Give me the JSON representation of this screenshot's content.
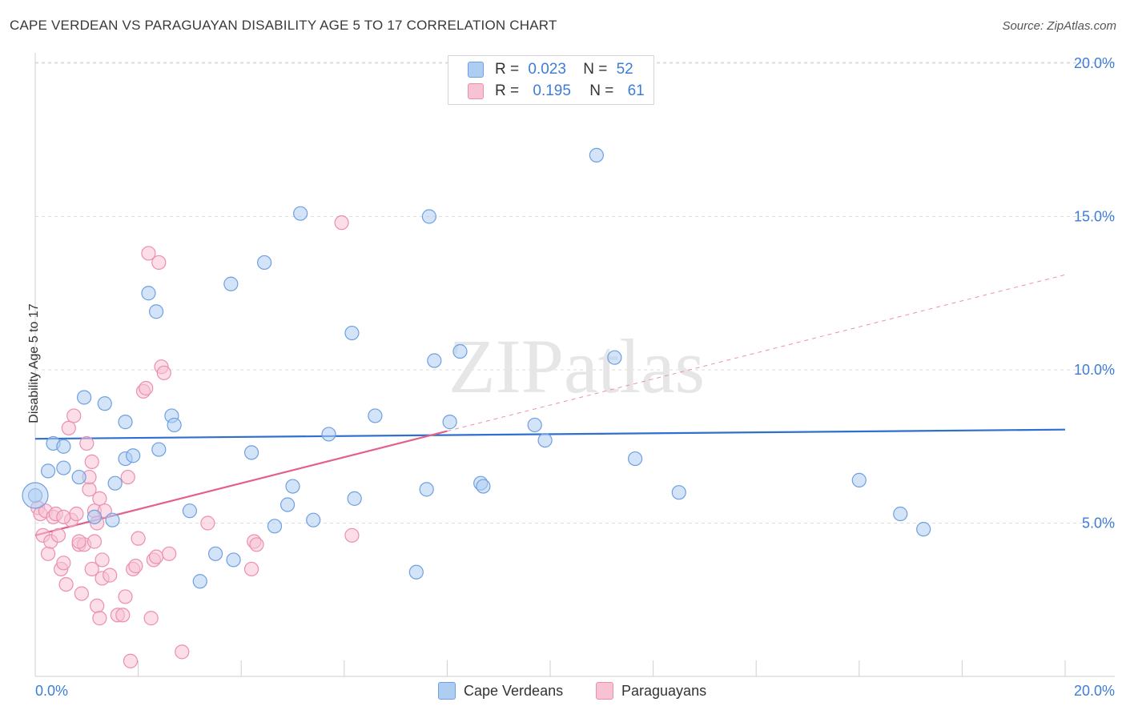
{
  "title": "CAPE VERDEAN VS PARAGUAYAN DISABILITY AGE 5 TO 17 CORRELATION CHART",
  "source": "Source: ZipAtlas.com",
  "watermark": "ZIPatlas",
  "legend_top": {
    "rows": [
      {
        "r_label": "R =",
        "r_value": "0.023",
        "n_label": "N =",
        "n_value": "52",
        "color": "#aecdf3",
        "stroke": "#6f9fe0"
      },
      {
        "r_label": "R =",
        "r_value": "0.195",
        "n_label": "N =",
        "n_value": "61",
        "color": "#f7c3d3",
        "stroke": "#ec8fae"
      }
    ]
  },
  "legend_bottom": [
    {
      "label": "Cape Verdeans",
      "color": "#aecdf3",
      "stroke": "#6f9fe0"
    },
    {
      "label": "Paraguayans",
      "color": "#f7c3d3",
      "stroke": "#ec8fae"
    }
  ],
  "chart_data": {
    "type": "scatter",
    "title": "CAPE VERDEAN VS PARAGUAYAN DISABILITY AGE 5 TO 17 CORRELATION CHART",
    "xlabel": "",
    "ylabel": "Disability Age 5 to 17",
    "xlim": [
      0,
      20
    ],
    "ylim": [
      0,
      20
    ],
    "x_tick_labels": [
      "0.0%",
      "20.0%"
    ],
    "y_ticks": [
      5,
      10,
      15,
      20
    ],
    "y_tick_labels": [
      "5.0%",
      "10.0%",
      "15.0%",
      "20.0%"
    ],
    "grid": true,
    "series": [
      {
        "name": "Cape Verdeans",
        "color": "#6f9fe0",
        "fill": "#aecdf3",
        "trend": {
          "x": [
            0,
            20
          ],
          "y": [
            7.75,
            8.05
          ],
          "color": "#2f6fd0"
        },
        "points": [
          [
            0.0,
            5.9
          ],
          [
            0.25,
            6.7
          ],
          [
            0.35,
            7.6
          ],
          [
            0.55,
            6.8
          ],
          [
            0.55,
            7.5
          ],
          [
            0.85,
            6.5
          ],
          [
            0.95,
            9.1
          ],
          [
            1.15,
            5.2
          ],
          [
            1.35,
            8.9
          ],
          [
            1.5,
            5.1
          ],
          [
            1.55,
            6.3
          ],
          [
            1.75,
            8.3
          ],
          [
            1.75,
            7.1
          ],
          [
            1.9,
            7.2
          ],
          [
            2.2,
            12.5
          ],
          [
            2.35,
            11.9
          ],
          [
            2.4,
            7.4
          ],
          [
            2.65,
            8.5
          ],
          [
            2.7,
            8.2
          ],
          [
            3.0,
            5.4
          ],
          [
            3.2,
            3.1
          ],
          [
            3.5,
            4.0
          ],
          [
            3.8,
            12.8
          ],
          [
            3.85,
            3.8
          ],
          [
            4.2,
            7.3
          ],
          [
            4.45,
            13.5
          ],
          [
            4.65,
            4.9
          ],
          [
            4.9,
            5.6
          ],
          [
            5.0,
            6.2
          ],
          [
            5.15,
            15.1
          ],
          [
            5.4,
            5.1
          ],
          [
            5.7,
            7.9
          ],
          [
            6.15,
            11.2
          ],
          [
            6.2,
            5.8
          ],
          [
            6.6,
            8.5
          ],
          [
            7.4,
            3.4
          ],
          [
            7.6,
            6.1
          ],
          [
            7.65,
            15.0
          ],
          [
            7.75,
            10.3
          ],
          [
            8.05,
            8.3
          ],
          [
            8.25,
            10.6
          ],
          [
            8.65,
            6.3
          ],
          [
            8.7,
            6.2
          ],
          [
            9.7,
            8.2
          ],
          [
            9.9,
            7.7
          ],
          [
            10.9,
            17.0
          ],
          [
            11.25,
            10.4
          ],
          [
            11.65,
            7.1
          ],
          [
            12.5,
            6.0
          ],
          [
            16.0,
            6.4
          ],
          [
            16.8,
            5.3
          ],
          [
            17.25,
            4.8
          ]
        ]
      },
      {
        "name": "Paraguayans",
        "color": "#ec8fae",
        "fill": "#f7c3d3",
        "trend": {
          "x": [
            0,
            8.0
          ],
          "y": [
            4.6,
            8.0
          ],
          "color": "#e2608d"
        },
        "trend_dashed": {
          "x": [
            8.0,
            20.0
          ],
          "y": [
            8.0,
            13.1
          ],
          "color": "#ec8fae"
        },
        "points": [
          [
            0.05,
            5.5
          ],
          [
            0.1,
            5.3
          ],
          [
            0.15,
            4.6
          ],
          [
            0.2,
            5.4
          ],
          [
            0.25,
            4.0
          ],
          [
            0.3,
            4.4
          ],
          [
            0.35,
            5.2
          ],
          [
            0.4,
            5.3
          ],
          [
            0.45,
            4.6
          ],
          [
            0.5,
            3.5
          ],
          [
            0.55,
            3.7
          ],
          [
            0.6,
            3.0
          ],
          [
            0.65,
            8.1
          ],
          [
            0.7,
            5.1
          ],
          [
            0.75,
            8.5
          ],
          [
            0.8,
            5.3
          ],
          [
            0.85,
            4.3
          ],
          [
            0.9,
            2.7
          ],
          [
            0.95,
            4.3
          ],
          [
            1.0,
            7.6
          ],
          [
            1.05,
            6.1
          ],
          [
            1.05,
            6.5
          ],
          [
            1.1,
            7.0
          ],
          [
            1.1,
            3.5
          ],
          [
            1.15,
            5.4
          ],
          [
            1.2,
            2.3
          ],
          [
            1.2,
            5.0
          ],
          [
            1.25,
            1.9
          ],
          [
            1.25,
            5.8
          ],
          [
            1.3,
            3.2
          ],
          [
            1.3,
            3.8
          ],
          [
            1.35,
            5.4
          ],
          [
            1.45,
            3.3
          ],
          [
            1.6,
            2.0
          ],
          [
            1.7,
            2.0
          ],
          [
            1.75,
            2.6
          ],
          [
            1.8,
            6.5
          ],
          [
            1.85,
            0.5
          ],
          [
            1.9,
            3.5
          ],
          [
            1.95,
            3.6
          ],
          [
            2.0,
            4.5
          ],
          [
            2.1,
            9.3
          ],
          [
            2.15,
            9.4
          ],
          [
            2.2,
            13.8
          ],
          [
            2.25,
            1.9
          ],
          [
            2.3,
            3.8
          ],
          [
            2.35,
            3.9
          ],
          [
            2.4,
            13.5
          ],
          [
            2.45,
            10.1
          ],
          [
            2.5,
            9.9
          ],
          [
            2.6,
            4.0
          ],
          [
            2.85,
            0.8
          ],
          [
            3.35,
            5.0
          ],
          [
            4.2,
            3.5
          ],
          [
            4.25,
            4.4
          ],
          [
            4.3,
            4.3
          ],
          [
            5.95,
            14.8
          ],
          [
            6.15,
            4.6
          ],
          [
            1.15,
            4.4
          ],
          [
            0.85,
            4.4
          ],
          [
            0.55,
            5.2
          ]
        ]
      }
    ]
  }
}
